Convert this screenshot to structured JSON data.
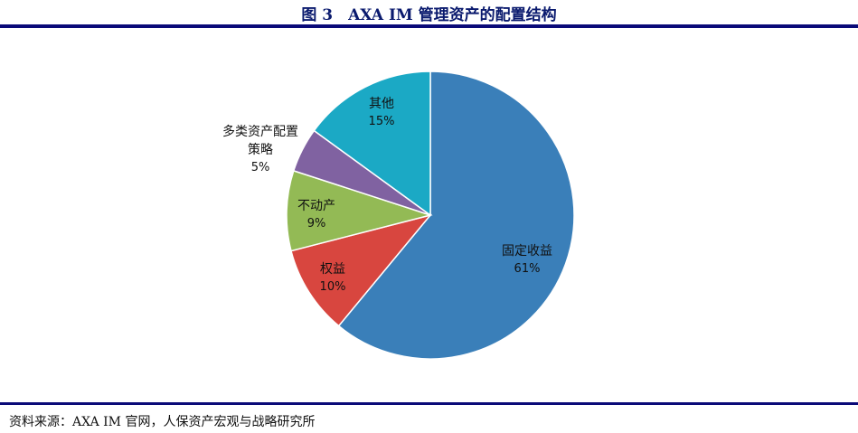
{
  "title": "图 3　AXA IM 管理资产的配置结构",
  "source": "资料来源：AXA IM 官网，人保资产宏观与战略研究所",
  "chart_data": {
    "type": "pie",
    "title": "AXA IM 管理资产的配置结构",
    "start_angle": "top",
    "direction": "clockwise",
    "categories": [
      "固定收益",
      "权益",
      "不动产",
      "多类资产配置策略",
      "其他"
    ],
    "values": [
      61,
      10,
      9,
      5,
      15
    ],
    "labels": [
      "61%",
      "10%",
      "9%",
      "5%",
      "15%"
    ],
    "colors": [
      "#3A7FB9",
      "#D8463F",
      "#93BA55",
      "#8062A1",
      "#1BA9C5"
    ]
  }
}
